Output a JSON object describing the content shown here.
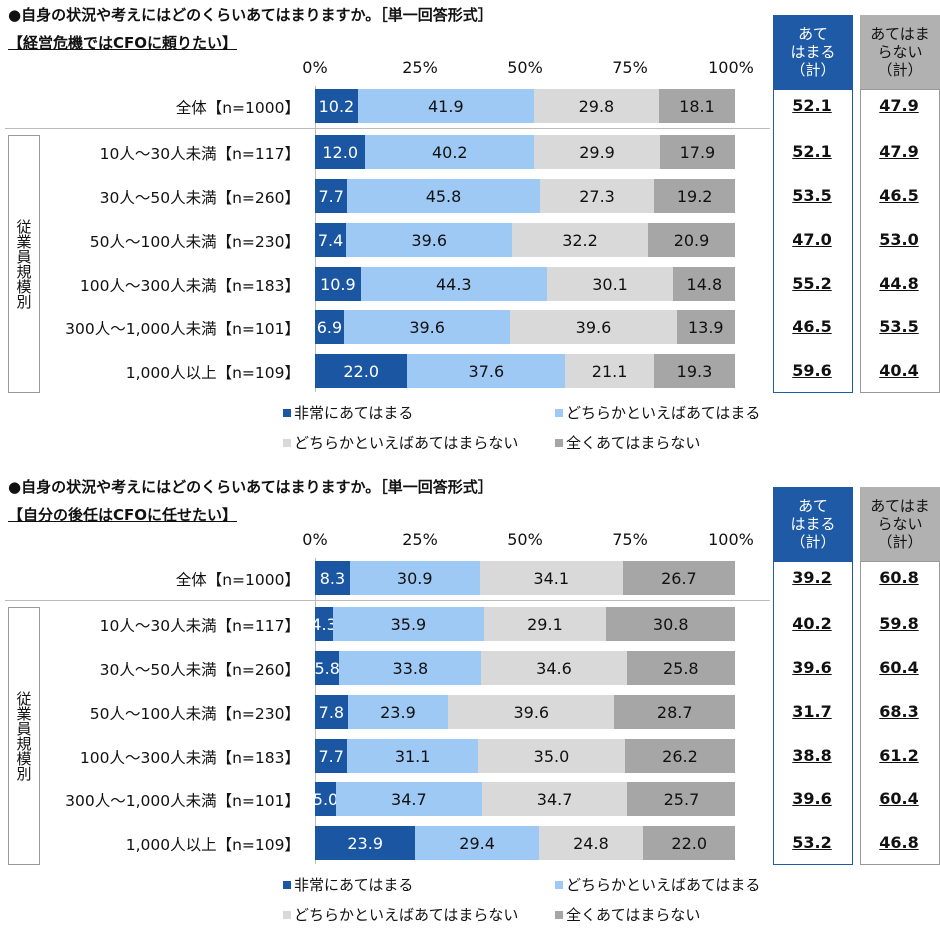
{
  "colors": {
    "very": "#1a56a2",
    "somewhat": "#9ec9f5",
    "somewhat_not": "#d9d9d9",
    "not_at_all": "#a6a6a6",
    "header_yes": "#1f5aa6",
    "header_no": "#b1b1b1"
  },
  "legend": [
    "非常にあてはまる",
    "どちらかといえばあてはまる",
    "どちらかといえばあてはまらない",
    "全くあてはまらない"
  ],
  "chart_data": [
    {
      "type": "bar",
      "orientation": "horizontal-stacked-100",
      "question": "●自身の状況や考えにはどのくらいあてはまりますか。［単一回答形式］",
      "title": "【経営危機ではCFOに頼りたい】",
      "xticks": [
        "0%",
        "25%",
        "50%",
        "75%",
        "100%"
      ],
      "xlim": [
        0,
        100
      ],
      "group_label": "従業員規模別",
      "col_yes": "あてはまる（計）",
      "col_no": "あてはまらない（計）",
      "col_yes_lines": [
        "あて",
        "はまる",
        "（計）"
      ],
      "col_no_lines": [
        "あてはま",
        "らない",
        "（計）"
      ],
      "categories": [
        "全体【n=1000】",
        "10人～30人未満【n=117】",
        "30人～50人未満【n=260】",
        "50人～100人未満【n=230】",
        "100人～300人未満【n=183】",
        "300人～1,000人未満【n=101】",
        "1,000人以上【n=109】"
      ],
      "series": [
        {
          "name": "非常にあてはまる",
          "values": [
            10.2,
            12.0,
            7.7,
            7.4,
            10.9,
            6.9,
            22.0
          ]
        },
        {
          "name": "どちらかといえばあてはまる",
          "values": [
            41.9,
            40.2,
            45.8,
            39.6,
            44.3,
            39.6,
            37.6
          ]
        },
        {
          "name": "どちらかといえばあてはまらない",
          "values": [
            29.8,
            29.9,
            27.3,
            32.2,
            30.1,
            39.6,
            21.1
          ]
        },
        {
          "name": "全くあてはまらない",
          "values": [
            18.1,
            17.9,
            19.2,
            20.9,
            14.8,
            13.9,
            19.3
          ]
        }
      ],
      "yes_total": [
        "52.1",
        "52.1",
        "53.5",
        "47.0",
        "55.2",
        "46.5",
        "59.6"
      ],
      "no_total": [
        "47.9",
        "47.9",
        "46.5",
        "53.0",
        "44.8",
        "53.5",
        "40.4"
      ]
    },
    {
      "type": "bar",
      "orientation": "horizontal-stacked-100",
      "question": "●自身の状況や考えにはどのくらいあてはまりますか。［単一回答形式］",
      "title": "【自分の後任はCFOに任せたい】",
      "xticks": [
        "0%",
        "25%",
        "50%",
        "75%",
        "100%"
      ],
      "xlim": [
        0,
        100
      ],
      "group_label": "従業員規模別",
      "col_yes": "あてはまる（計）",
      "col_no": "あてはまらない（計）",
      "col_yes_lines": [
        "あて",
        "はまる",
        "（計）"
      ],
      "col_no_lines": [
        "あてはま",
        "らない",
        "（計）"
      ],
      "categories": [
        "全体【n=1000】",
        "10人～30人未満【n=117】",
        "30人～50人未満【n=260】",
        "50人～100人未満【n=230】",
        "100人～300人未満【n=183】",
        "300人～1,000人未満【n=101】",
        "1,000人以上【n=109】"
      ],
      "series": [
        {
          "name": "非常にあてはまる",
          "values": [
            8.3,
            4.3,
            5.8,
            7.8,
            7.7,
            5.0,
            23.9
          ]
        },
        {
          "name": "どちらかといえばあてはまる",
          "values": [
            30.9,
            35.9,
            33.8,
            23.9,
            31.1,
            34.7,
            29.4
          ]
        },
        {
          "name": "どちらかといえばあてはまらない",
          "values": [
            34.1,
            29.1,
            34.6,
            39.6,
            35.0,
            34.7,
            24.8
          ]
        },
        {
          "name": "全くあてはまらない",
          "values": [
            26.7,
            30.8,
            25.8,
            28.7,
            26.2,
            25.7,
            22.0
          ]
        }
      ],
      "yes_total": [
        "39.2",
        "40.2",
        "39.6",
        "31.7",
        "38.8",
        "39.6",
        "53.2"
      ],
      "no_total": [
        "60.8",
        "59.8",
        "60.4",
        "68.3",
        "61.2",
        "60.4",
        "46.8"
      ]
    }
  ]
}
